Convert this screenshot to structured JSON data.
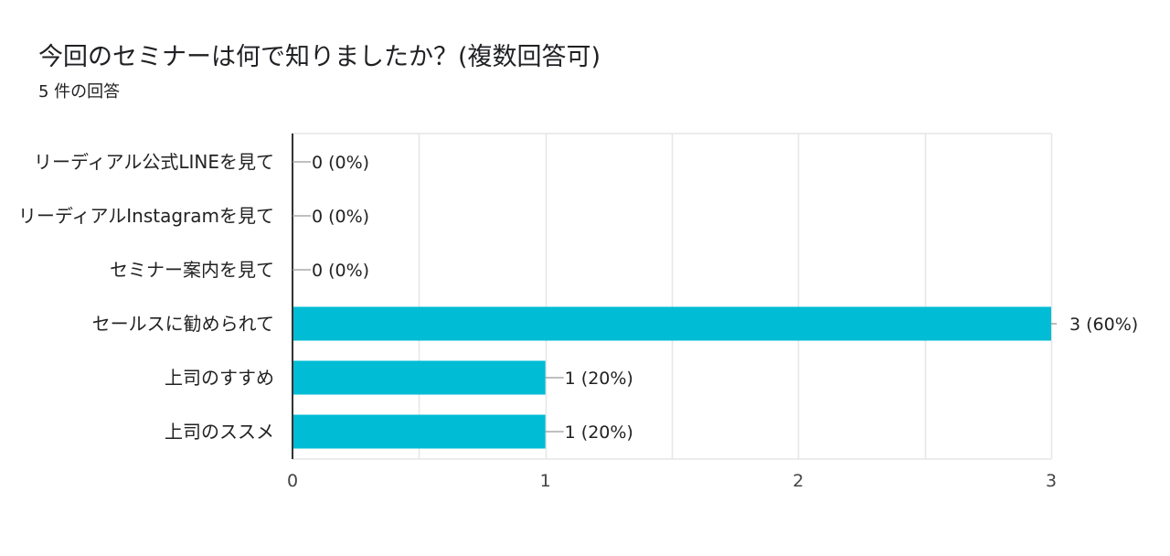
{
  "question": {
    "title": "今回のセミナーは何で知りましたか？(複数回答可)",
    "response_count": "5 件の回答"
  },
  "colors": {
    "bar": "#00bcd4",
    "axis": "#333333",
    "grid": "#e6e6e6",
    "leader": "#999999"
  },
  "chart_data": {
    "type": "bar",
    "orientation": "horizontal",
    "categories": [
      "リーディアル公式LINEを見て",
      "リーディアルInstagramを見て",
      "セミナー案内を見て",
      "セールスに勧められて",
      "上司のすすめ",
      "上司のススメ"
    ],
    "values": [
      0,
      0,
      0,
      3,
      1,
      1
    ],
    "data_labels": [
      "0 (0%)",
      "0 (0%)",
      "0 (0%)",
      "3 (60%)",
      "1 (20%)",
      "1 (20%)"
    ],
    "xlim": [
      0,
      3
    ],
    "x_ticks": [
      "0",
      "1",
      "2",
      "3"
    ],
    "grid": true,
    "legend": "none"
  }
}
